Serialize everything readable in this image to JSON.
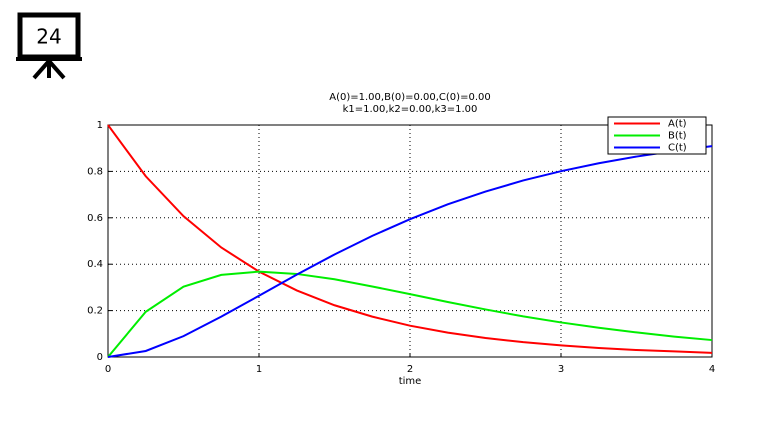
{
  "slide_number": "24",
  "chart_data": {
    "type": "line",
    "title": "A(0)=1.00,B(0)=0.00,C(0)=0.00",
    "subtitle": "k1=1.00,k2=0.00,k3=1.00",
    "x_label": "time",
    "x": [
      0,
      0.25,
      0.5,
      0.75,
      1,
      1.25,
      1.5,
      1.75,
      2,
      2.25,
      2.5,
      2.75,
      3,
      3.25,
      3.5,
      3.75,
      4
    ],
    "series": [
      {
        "name": "A(t)",
        "color": "#ff0000",
        "values": [
          1,
          0.779,
          0.607,
          0.472,
          0.368,
          0.287,
          0.223,
          0.174,
          0.135,
          0.105,
          0.082,
          0.064,
          0.05,
          0.039,
          0.03,
          0.024,
          0.018
        ]
      },
      {
        "name": "B(t)",
        "color": "#00ee00",
        "values": [
          0,
          0.195,
          0.303,
          0.354,
          0.368,
          0.358,
          0.335,
          0.304,
          0.271,
          0.237,
          0.205,
          0.175,
          0.149,
          0.126,
          0.106,
          0.088,
          0.073
        ]
      },
      {
        "name": "C(t)",
        "color": "#0000ff",
        "values": [
          0,
          0.026,
          0.09,
          0.174,
          0.264,
          0.355,
          0.442,
          0.522,
          0.594,
          0.658,
          0.713,
          0.761,
          0.801,
          0.835,
          0.864,
          0.888,
          0.909
        ]
      }
    ],
    "xlim": [
      0,
      4
    ],
    "xticks": [
      0,
      1,
      2,
      3,
      4
    ],
    "ylim": [
      0,
      1
    ],
    "yticks": [
      0,
      0.2,
      0.4,
      0.6,
      0.8,
      1
    ],
    "grid": true,
    "legend": "top-right"
  }
}
